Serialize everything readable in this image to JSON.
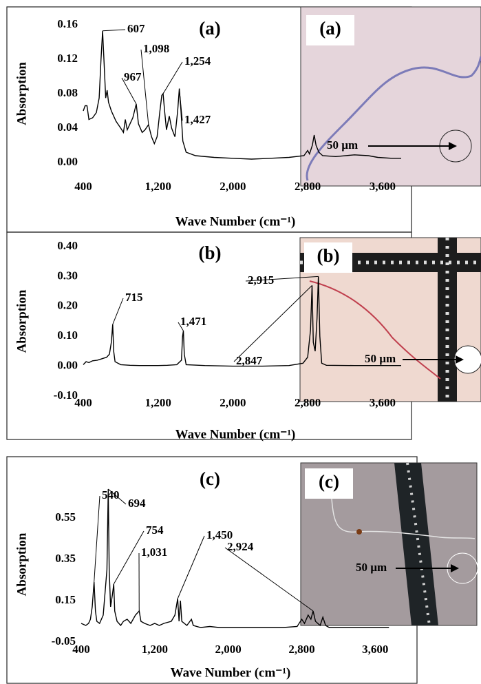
{
  "chart_data": [
    {
      "type": "line",
      "panel_label": "(a)",
      "inset_label": "(a)",
      "scale_label": "50 µm",
      "x_label": "Wave Number (cm⁻¹)",
      "y_label": "Absorption",
      "color": "#000000",
      "xlim": [
        400,
        3800
      ],
      "ylim": [
        0,
        0.16
      ],
      "xticks": [
        400,
        {
          "value": 1200,
          "label": "1,200"
        },
        {
          "value": 2000,
          "label": "2,000"
        },
        {
          "value": 2800,
          "label": "2,800"
        },
        {
          "value": 3600,
          "label": "3,600"
        }
      ],
      "yticks": [
        {
          "value": 0,
          "label": "0.00"
        },
        {
          "value": 0.04,
          "label": "0.04"
        },
        {
          "value": 0.08,
          "label": "0.08"
        },
        {
          "value": 0.12,
          "label": "0.12"
        },
        {
          "value": 0.16,
          "label": "0.16"
        }
      ],
      "x": [
        400,
        420,
        440,
        460,
        500,
        540,
        570,
        590,
        607,
        625,
        640,
        655,
        670,
        700,
        750,
        800,
        830,
        850,
        870,
        900,
        930,
        967,
        990,
        1030,
        1060,
        1098,
        1130,
        1160,
        1190,
        1220,
        1240,
        1254,
        1270,
        1290,
        1320,
        1345,
        1380,
        1410,
        1427,
        1445,
        1465,
        1500,
        1600,
        1800,
        2000,
        2200,
        2400,
        2600,
        2760,
        2800,
        2820,
        2850,
        2870,
        2890,
        2920,
        2960,
        3100,
        3300,
        3450,
        3550,
        3700,
        3800
      ],
      "values": [
        0.06,
        0.066,
        0.066,
        0.05,
        0.052,
        0.058,
        0.075,
        0.12,
        0.153,
        0.11,
        0.075,
        0.084,
        0.07,
        0.06,
        0.048,
        0.04,
        0.035,
        0.05,
        0.038,
        0.045,
        0.052,
        0.068,
        0.045,
        0.035,
        0.038,
        0.044,
        0.03,
        0.022,
        0.03,
        0.06,
        0.078,
        0.08,
        0.06,
        0.038,
        0.054,
        0.04,
        0.03,
        0.06,
        0.086,
        0.06,
        0.025,
        0.012,
        0.008,
        0.006,
        0.005,
        0.004,
        0.005,
        0.006,
        0.008,
        0.014,
        0.01,
        0.02,
        0.032,
        0.02,
        0.012,
        0.008,
        0.007,
        0.009,
        0.008,
        0.006,
        0.005,
        0.005
      ],
      "annotations": [
        {
          "label": "607",
          "x": 607,
          "y": 0.153
        },
        {
          "label": "967",
          "x": 967,
          "y": 0.068
        },
        {
          "label": "1,098",
          "x": 1098,
          "y": 0.044
        },
        {
          "label": "1,254",
          "x": 1254,
          "y": 0.08
        },
        {
          "label": "1,427",
          "x": 1427,
          "y": 0.086
        }
      ]
    },
    {
      "type": "line",
      "panel_label": "(b)",
      "inset_label": "(b)",
      "scale_label": "50 µm",
      "x_label": "Wave Number (cm⁻¹)",
      "y_label": "Absorption",
      "color": "#000000",
      "xlim": [
        400,
        3800
      ],
      "ylim": [
        -0.1,
        0.4
      ],
      "xticks": [
        400,
        {
          "value": 1200,
          "label": "1,200"
        },
        {
          "value": 2000,
          "label": "2,000"
        },
        {
          "value": 2800,
          "label": "2,800"
        },
        {
          "value": 3600,
          "label": "3,600"
        }
      ],
      "yticks": [
        {
          "value": -0.1,
          "label": "-0.10"
        },
        {
          "value": 0,
          "label": "0.00"
        },
        {
          "value": 0.1,
          "label": "0.10"
        },
        {
          "value": 0.2,
          "label": "0.20"
        },
        {
          "value": 0.3,
          "label": "0.30"
        },
        {
          "value": 0.4,
          "label": "0.40"
        }
      ],
      "x": [
        400,
        430,
        460,
        500,
        550,
        600,
        650,
        680,
        700,
        715,
        725,
        740,
        800,
        900,
        1000,
        1200,
        1300,
        1400,
        1450,
        1462,
        1471,
        1480,
        1500,
        1700,
        2000,
        2300,
        2600,
        2750,
        2800,
        2830,
        2847,
        2860,
        2880,
        2900,
        2915,
        2930,
        2950,
        3000,
        3300,
        3600,
        3800
      ],
      "values": [
        0.005,
        0.015,
        0.012,
        0.018,
        0.02,
        0.025,
        0.03,
        0.04,
        0.08,
        0.14,
        0.05,
        0.015,
        0.005,
        0.003,
        0.002,
        0.002,
        0.003,
        0.005,
        0.02,
        0.1,
        0.118,
        0.04,
        0.005,
        0.002,
        0,
        0,
        0.002,
        0.01,
        0.03,
        0.12,
        0.27,
        0.08,
        0.05,
        0.16,
        0.3,
        0.1,
        0.01,
        0.003,
        0.002,
        0.002,
        0.002
      ],
      "annotations": [
        {
          "label": "715",
          "x": 715,
          "y": 0.14
        },
        {
          "label": "1,471",
          "x": 1471,
          "y": 0.118
        },
        {
          "label": "2,915",
          "x": 2915,
          "y": 0.3
        },
        {
          "label": "2,847",
          "x": 2847,
          "y": 0.27
        }
      ]
    },
    {
      "type": "line",
      "panel_label": "(c)",
      "inset_label": "(c)",
      "scale_label": "50 µm",
      "x_label": "Wave Number (cm⁻¹)",
      "y_label": "Absorption",
      "color": "#000000",
      "xlim": [
        400,
        3800
      ],
      "ylim": [
        -0.05,
        0.7
      ],
      "xticks": [
        400,
        {
          "value": 1200,
          "label": "1,200"
        },
        {
          "value": 2000,
          "label": "2,000"
        },
        {
          "value": 2800,
          "label": "2,800"
        },
        {
          "value": 3600,
          "label": "3,600"
        }
      ],
      "yticks": [
        -0.05,
        0.15,
        0.35,
        0.55
      ],
      "x": [
        400,
        450,
        480,
        500,
        520,
        540,
        555,
        570,
        600,
        640,
        680,
        694,
        705,
        720,
        740,
        754,
        765,
        790,
        830,
        860,
        900,
        940,
        990,
        1031,
        1050,
        1090,
        1150,
        1200,
        1250,
        1300,
        1380,
        1420,
        1450,
        1465,
        1480,
        1495,
        1550,
        1600,
        1620,
        1700,
        1800,
        1900,
        2000,
        2200,
        2400,
        2600,
        2750,
        2800,
        2830,
        2870,
        2900,
        2924,
        2950,
        3000,
        3030,
        3060,
        3100,
        3300,
        3600,
        3750
      ],
      "values": [
        0.04,
        0.03,
        0.04,
        0.06,
        0.12,
        0.24,
        0.1,
        0.05,
        0.04,
        0.08,
        0.3,
        0.69,
        0.3,
        0.12,
        0.18,
        0.23,
        0.1,
        0.05,
        0.03,
        0.05,
        0.06,
        0.04,
        0.08,
        0.1,
        0.05,
        0.04,
        0.03,
        0.04,
        0.03,
        0.04,
        0.05,
        0.08,
        0.16,
        0.05,
        0.15,
        0.05,
        0.03,
        0.06,
        0.03,
        0.02,
        0.025,
        0.02,
        0.02,
        0.02,
        0.02,
        0.02,
        0.025,
        0.06,
        0.04,
        0.08,
        0.06,
        0.1,
        0.05,
        0.03,
        0.07,
        0.03,
        0.02,
        0.02,
        0.02,
        0.02
      ],
      "annotations": [
        {
          "label": "540",
          "x": 540,
          "y": 0.24
        },
        {
          "label": "694",
          "x": 694,
          "y": 0.69
        },
        {
          "label": "754",
          "x": 754,
          "y": 0.23
        },
        {
          "label": "1,031",
          "x": 1031,
          "y": 0.1
        },
        {
          "label": "1,450",
          "x": 1450,
          "y": 0.16
        },
        {
          "label": "2,924",
          "x": 2924,
          "y": 0.1
        }
      ]
    }
  ]
}
